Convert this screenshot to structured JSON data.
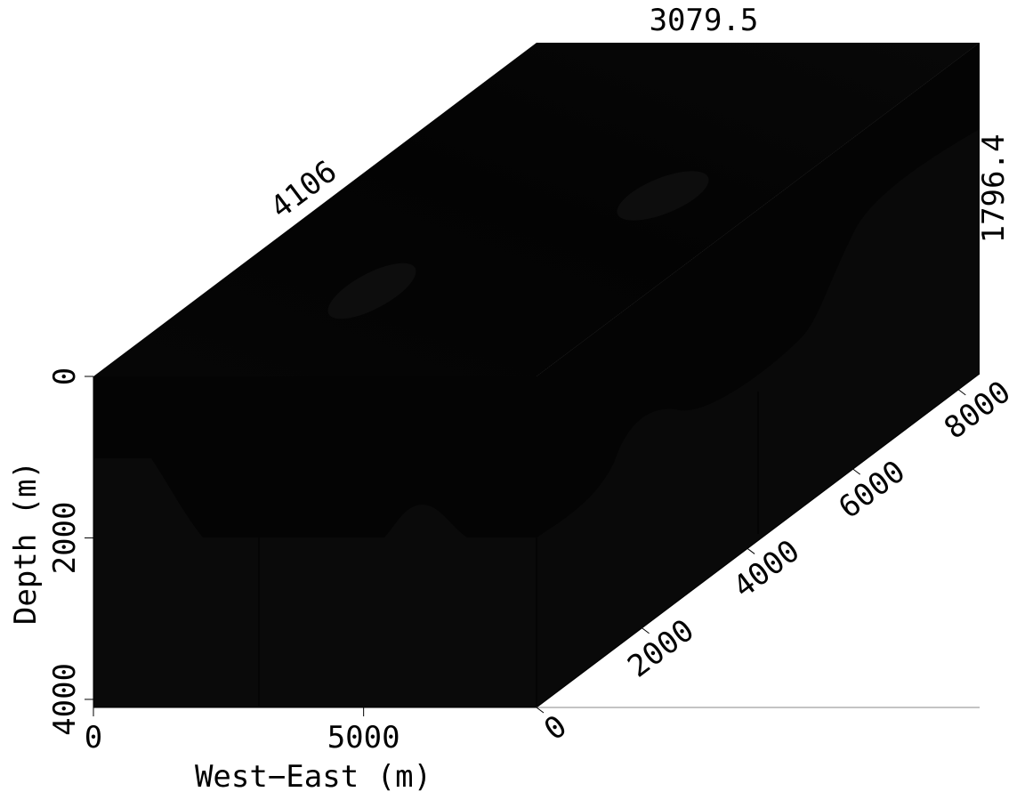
{
  "chart_data": {
    "type": "heatmap",
    "projection": "3d-cube",
    "colormap": "grayscale",
    "grid": false,
    "xlabel": "West−East (m)",
    "ylabel": "Depth (m)",
    "axes": {
      "x": {
        "range": [
          0,
          8200
        ],
        "ticks": [
          {
            "value": 0,
            "label": "0"
          },
          {
            "value": 5000,
            "label": "5000"
          }
        ]
      },
      "depth": {
        "range": [
          0,
          4100
        ],
        "ticks": [
          {
            "value": 0,
            "label": "0"
          },
          {
            "value": 2000,
            "label": "2000"
          },
          {
            "value": 4000,
            "label": "4000"
          }
        ]
      },
      "y": {
        "range": [
          0,
          8400
        ],
        "ticks": [
          {
            "value": 0,
            "label": "0"
          },
          {
            "value": 2000,
            "label": "2000"
          },
          {
            "value": 4000,
            "label": "4000"
          },
          {
            "value": 6000,
            "label": "6000"
          },
          {
            "value": 8000,
            "label": "8000"
          }
        ]
      }
    },
    "slice_positions": {
      "x": "4106",
      "y": "3079.5",
      "depth": "1796.4"
    },
    "colors": {
      "background": "#ffffff",
      "volume_dark": "#050505",
      "volume_mid": "#0a0a0a",
      "axis": "#000000"
    }
  }
}
